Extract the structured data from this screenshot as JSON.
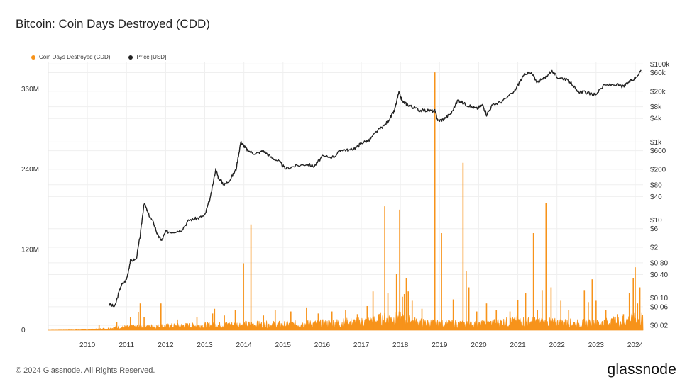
{
  "title": "Bitcoin: Coin Days Destroyed (CDD)",
  "legend": [
    {
      "label": "Coin Days Destroyed (CDD)",
      "color": "#f7931a"
    },
    {
      "label": "Price [USD]",
      "color": "#222222"
    }
  ],
  "footer": "© 2024 Glassnode. All Rights Reserved.",
  "brand": "glassnode",
  "chart_data": {
    "type": "line",
    "title": "Bitcoin: Coin Days Destroyed (CDD)",
    "grid": true,
    "legend_position": "top-left",
    "x_ticks": [
      "2010",
      "2011",
      "2012",
      "2013",
      "2014",
      "2015",
      "2016",
      "2017",
      "2018",
      "2019",
      "2020",
      "2021",
      "2022",
      "2023",
      "2024"
    ],
    "x_range": [
      2009.0,
      2024.2
    ],
    "y_left": {
      "ticks": [
        {
          "v": 0,
          "label": "0"
        },
        {
          "v": 120000000,
          "label": "120M"
        },
        {
          "v": 240000000,
          "label": "240M"
        },
        {
          "v": 360000000,
          "label": "360M"
        }
      ],
      "range": [
        0,
        400000000
      ]
    },
    "y_right": {
      "scale": "log",
      "ticks": [
        {
          "v": 100000,
          "label": "$100k"
        },
        {
          "v": 60000,
          "label": "$60k"
        },
        {
          "v": 20000,
          "label": "$20k"
        },
        {
          "v": 8000,
          "label": "$8k"
        },
        {
          "v": 4000,
          "label": "$4k"
        },
        {
          "v": 1000,
          "label": "$1k"
        },
        {
          "v": 600,
          "label": "$600"
        },
        {
          "v": 200,
          "label": "$200"
        },
        {
          "v": 80,
          "label": "$80"
        },
        {
          "v": 40,
          "label": "$40"
        },
        {
          "v": 10,
          "label": "$10"
        },
        {
          "v": 6,
          "label": "$6"
        },
        {
          "v": 2,
          "label": "$2"
        },
        {
          "v": 0.8,
          "label": "$0.80"
        },
        {
          "v": 0.4,
          "label": "$0.40"
        },
        {
          "v": 0.1,
          "label": "$0.10"
        },
        {
          "v": 0.06,
          "label": "$0.06"
        },
        {
          "v": 0.02,
          "label": "$0.02"
        }
      ],
      "range": [
        0.015,
        110000
      ]
    },
    "series": [
      {
        "name": "Price [USD]",
        "axis": "right",
        "color": "#222222",
        "points": [
          [
            2010.55,
            0.07
          ],
          [
            2010.7,
            0.06
          ],
          [
            2010.85,
            0.2
          ],
          [
            2011.0,
            0.3
          ],
          [
            2011.1,
            0.9
          ],
          [
            2011.25,
            1.0
          ],
          [
            2011.35,
            4
          ],
          [
            2011.45,
            28
          ],
          [
            2011.55,
            15
          ],
          [
            2011.7,
            8
          ],
          [
            2011.8,
            4
          ],
          [
            2011.9,
            3
          ],
          [
            2012.0,
            5
          ],
          [
            2012.2,
            5
          ],
          [
            2012.4,
            5.5
          ],
          [
            2012.6,
            10
          ],
          [
            2012.8,
            11
          ],
          [
            2013.0,
            13
          ],
          [
            2013.15,
            40
          ],
          [
            2013.28,
            200
          ],
          [
            2013.35,
            120
          ],
          [
            2013.5,
            80
          ],
          [
            2013.65,
            110
          ],
          [
            2013.8,
            200
          ],
          [
            2013.92,
            1000
          ],
          [
            2014.0,
            800
          ],
          [
            2014.1,
            600
          ],
          [
            2014.3,
            500
          ],
          [
            2014.5,
            600
          ],
          [
            2014.7,
            400
          ],
          [
            2014.9,
            320
          ],
          [
            2015.05,
            210
          ],
          [
            2015.3,
            240
          ],
          [
            2015.6,
            270
          ],
          [
            2015.8,
            240
          ],
          [
            2016.0,
            420
          ],
          [
            2016.3,
            420
          ],
          [
            2016.5,
            650
          ],
          [
            2016.7,
            610
          ],
          [
            2016.9,
            760
          ],
          [
            2017.0,
            950
          ],
          [
            2017.2,
            1100
          ],
          [
            2017.4,
            1900
          ],
          [
            2017.6,
            2700
          ],
          [
            2017.75,
            4300
          ],
          [
            2017.85,
            6500
          ],
          [
            2017.96,
            18500
          ],
          [
            2018.05,
            11000
          ],
          [
            2018.15,
            9500
          ],
          [
            2018.3,
            8000
          ],
          [
            2018.5,
            6500
          ],
          [
            2018.7,
            6400
          ],
          [
            2018.88,
            6300
          ],
          [
            2018.96,
            3500
          ],
          [
            2019.1,
            3800
          ],
          [
            2019.3,
            5500
          ],
          [
            2019.47,
            12000
          ],
          [
            2019.6,
            10000
          ],
          [
            2019.8,
            8000
          ],
          [
            2019.95,
            7200
          ],
          [
            2020.1,
            9000
          ],
          [
            2020.2,
            5000
          ],
          [
            2020.35,
            8800
          ],
          [
            2020.6,
            11000
          ],
          [
            2020.9,
            19000
          ],
          [
            2021.05,
            35000
          ],
          [
            2021.2,
            58000
          ],
          [
            2021.35,
            57000
          ],
          [
            2021.5,
            34000
          ],
          [
            2021.7,
            45000
          ],
          [
            2021.86,
            67000
          ],
          [
            2022.0,
            46000
          ],
          [
            2022.2,
            42000
          ],
          [
            2022.4,
            30000
          ],
          [
            2022.5,
            20000
          ],
          [
            2022.7,
            19000
          ],
          [
            2022.9,
            16500
          ],
          [
            2023.0,
            17000
          ],
          [
            2023.2,
            28000
          ],
          [
            2023.5,
            30000
          ],
          [
            2023.7,
            26000
          ],
          [
            2023.85,
            35000
          ],
          [
            2024.0,
            43000
          ],
          [
            2024.15,
            70000
          ]
        ]
      },
      {
        "name": "Coin Days Destroyed (CDD)",
        "axis": "left",
        "color": "#f7931a",
        "baseline": [
          [
            2009.0,
            0
          ],
          [
            2010.0,
            500000
          ],
          [
            2010.5,
            2000000
          ],
          [
            2011.0,
            4000000
          ],
          [
            2012.0,
            5000000
          ],
          [
            2013.0,
            6000000
          ],
          [
            2014.0,
            7000000
          ],
          [
            2015.0,
            7000000
          ],
          [
            2016.0,
            8000000
          ],
          [
            2017.0,
            10000000
          ],
          [
            2017.5,
            13000000
          ],
          [
            2018.0,
            14000000
          ],
          [
            2018.5,
            9000000
          ],
          [
            2019.0,
            8000000
          ],
          [
            2020.0,
            7000000
          ],
          [
            2021.0,
            11000000
          ],
          [
            2022.0,
            9000000
          ],
          [
            2023.0,
            8000000
          ],
          [
            2024.0,
            13000000
          ],
          [
            2024.2,
            14000000
          ]
        ],
        "spikes": [
          [
            2010.3,
            8000000
          ],
          [
            2010.75,
            12000000
          ],
          [
            2011.1,
            19000000
          ],
          [
            2011.3,
            27000000
          ],
          [
            2011.45,
            20000000
          ],
          [
            2011.88,
            40000000
          ],
          [
            2011.35,
            40000000
          ],
          [
            2012.3,
            16000000
          ],
          [
            2012.8,
            20000000
          ],
          [
            2013.2,
            25000000
          ],
          [
            2013.25,
            32000000
          ],
          [
            2013.5,
            22000000
          ],
          [
            2013.78,
            30000000
          ],
          [
            2013.99,
            100000000
          ],
          [
            2014.18,
            158000000
          ],
          [
            2014.5,
            22000000
          ],
          [
            2014.8,
            30000000
          ],
          [
            2015.2,
            28000000
          ],
          [
            2015.6,
            34000000
          ],
          [
            2015.9,
            25000000
          ],
          [
            2016.25,
            28000000
          ],
          [
            2016.6,
            30000000
          ],
          [
            2016.9,
            24000000
          ],
          [
            2017.15,
            36000000
          ],
          [
            2017.3,
            58000000
          ],
          [
            2017.6,
            185000000
          ],
          [
            2017.68,
            55000000
          ],
          [
            2017.9,
            84000000
          ],
          [
            2017.98,
            180000000
          ],
          [
            2018.05,
            50000000
          ],
          [
            2018.1,
            54000000
          ],
          [
            2018.15,
            78000000
          ],
          [
            2018.2,
            58000000
          ],
          [
            2018.3,
            44000000
          ],
          [
            2018.55,
            32000000
          ],
          [
            2018.88,
            385000000
          ],
          [
            2019.05,
            145000000
          ],
          [
            2019.35,
            46000000
          ],
          [
            2019.6,
            250000000
          ],
          [
            2019.68,
            88000000
          ],
          [
            2019.75,
            64000000
          ],
          [
            2019.95,
            28000000
          ],
          [
            2020.2,
            40000000
          ],
          [
            2020.45,
            30000000
          ],
          [
            2020.8,
            28000000
          ],
          [
            2021.0,
            45000000
          ],
          [
            2021.2,
            55000000
          ],
          [
            2021.5,
            30000000
          ],
          [
            2021.4,
            145000000
          ],
          [
            2021.62,
            60000000
          ],
          [
            2021.72,
            190000000
          ],
          [
            2021.85,
            64000000
          ],
          [
            2022.1,
            44000000
          ],
          [
            2022.3,
            30000000
          ],
          [
            2022.7,
            60000000
          ],
          [
            2022.8,
            42000000
          ],
          [
            2022.9,
            76000000
          ],
          [
            2023.0,
            44000000
          ],
          [
            2023.25,
            30000000
          ],
          [
            2023.55,
            24000000
          ],
          [
            2023.7,
            24000000
          ],
          [
            2023.85,
            56000000
          ],
          [
            2023.95,
            78000000
          ],
          [
            2024.0,
            94000000
          ],
          [
            2024.06,
            40000000
          ],
          [
            2024.12,
            64000000
          ]
        ]
      }
    ]
  }
}
